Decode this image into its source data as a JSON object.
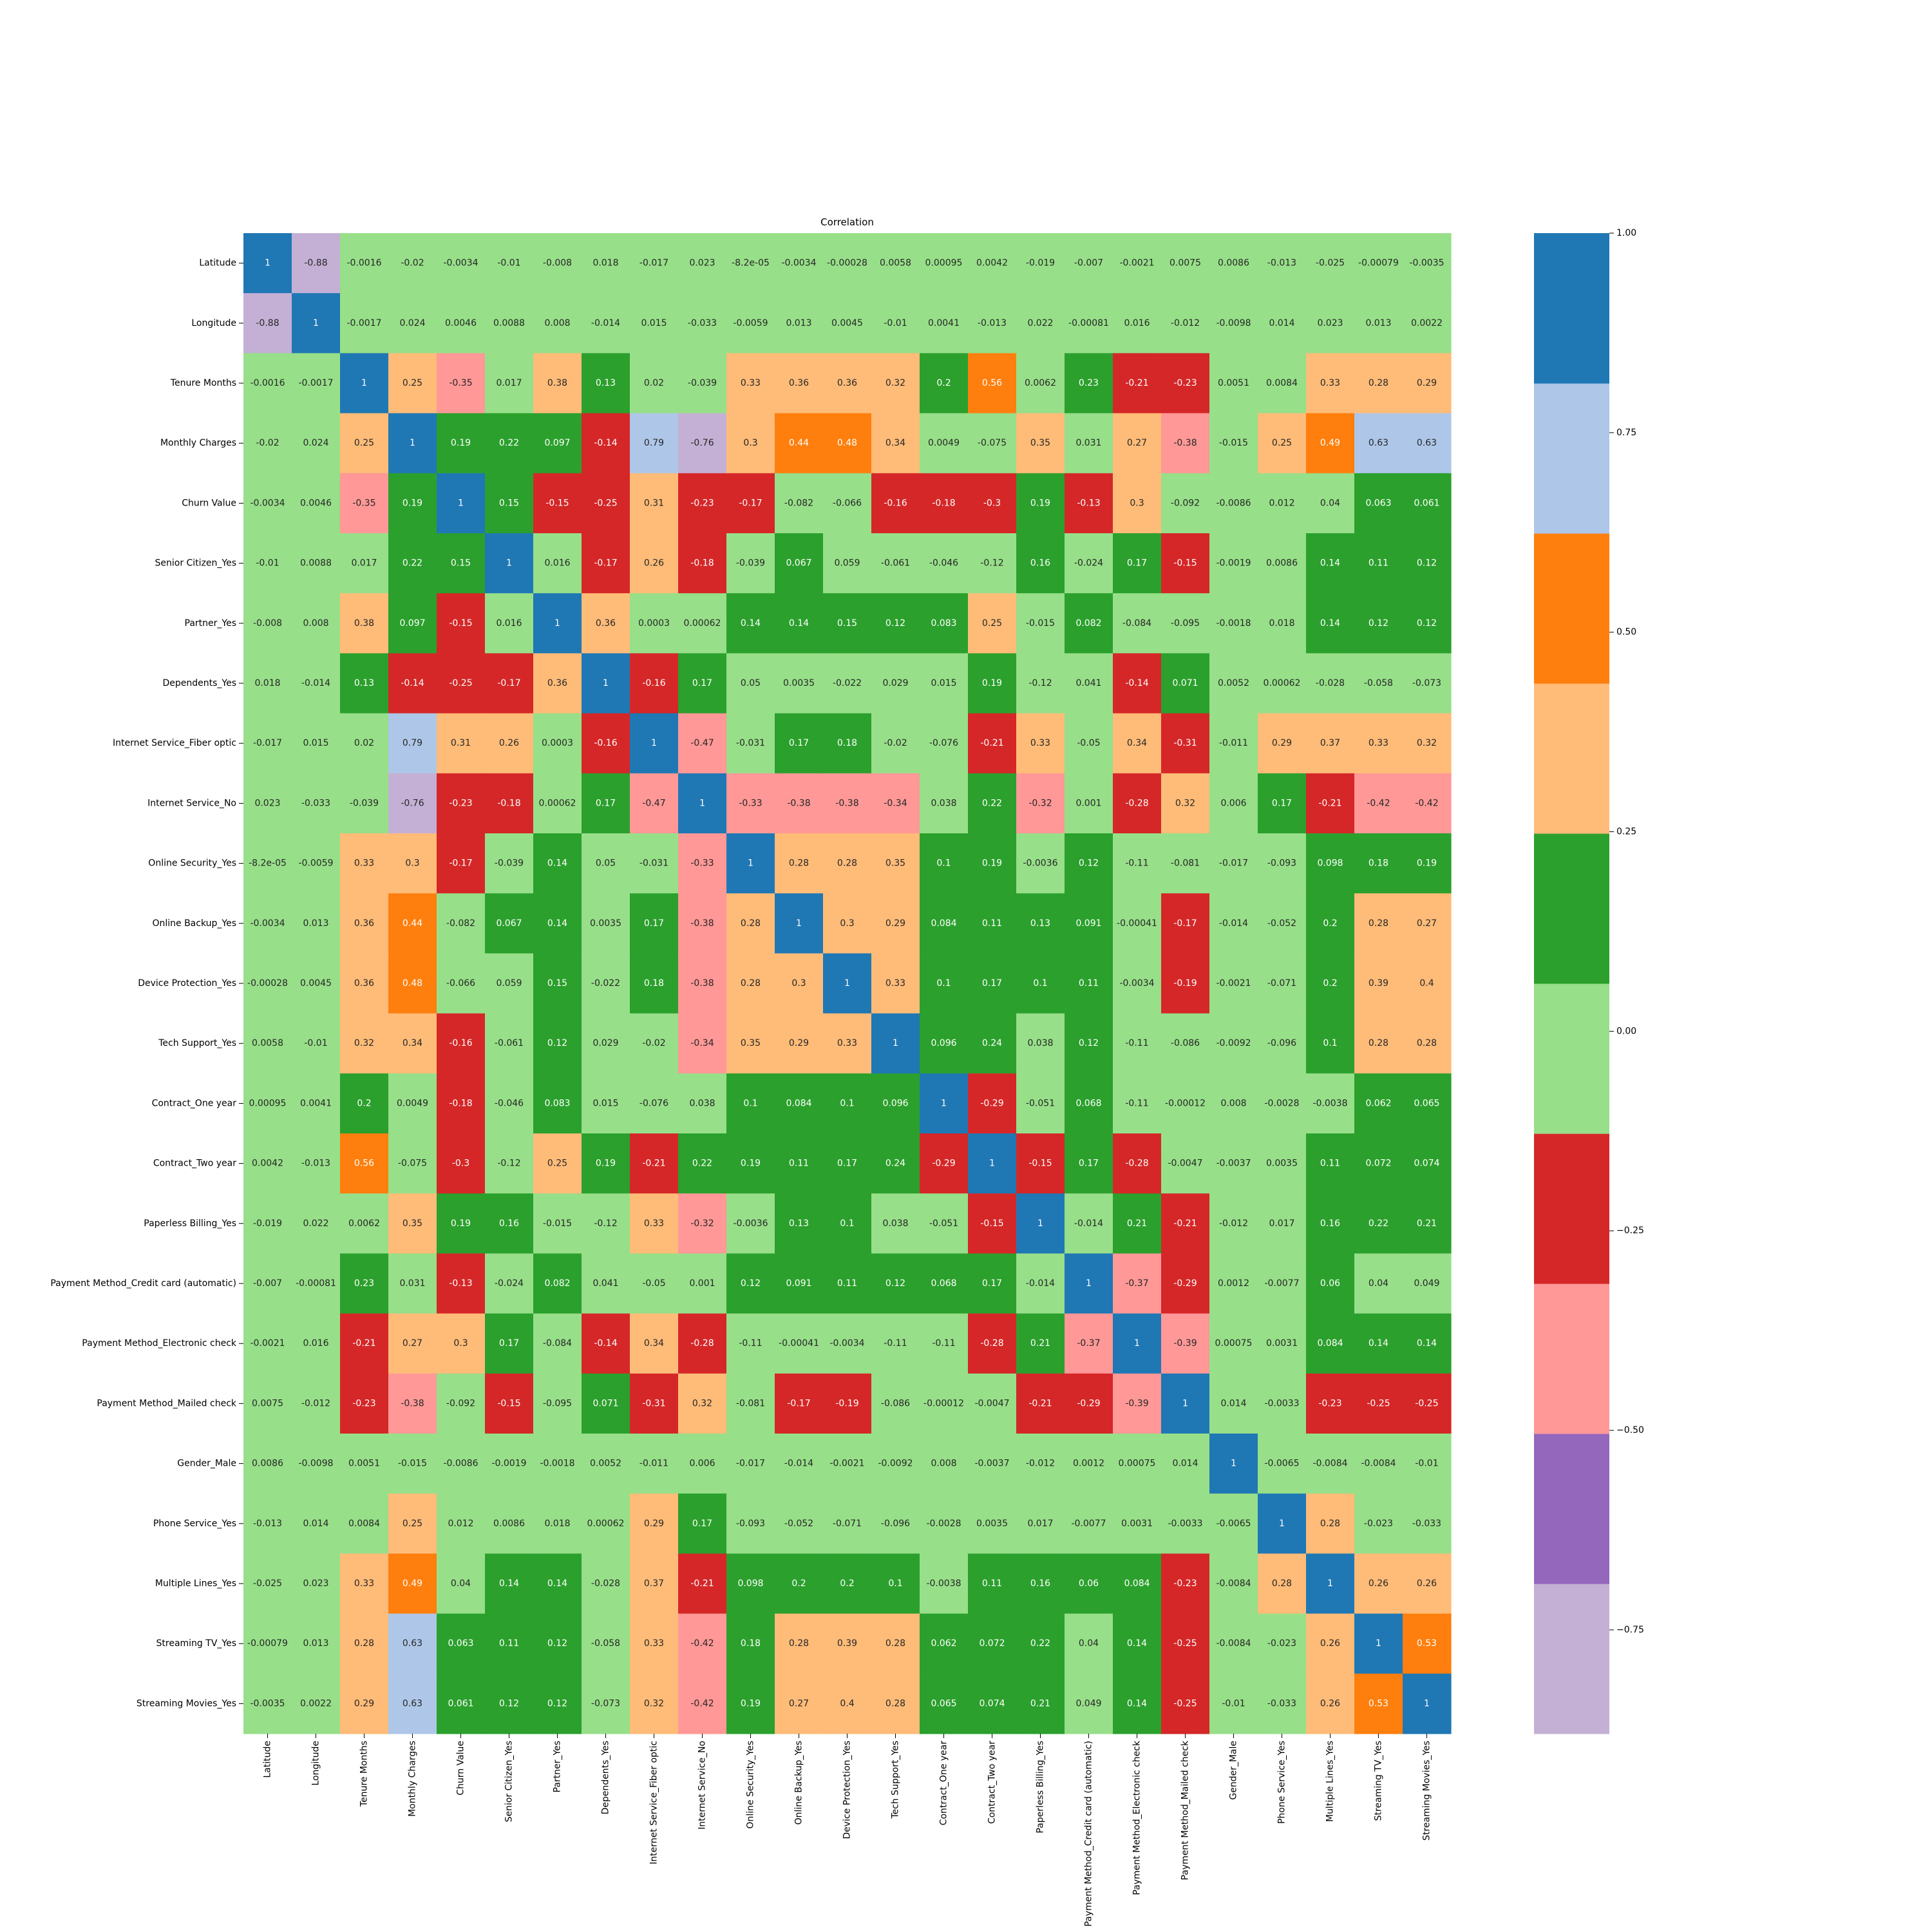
{
  "chart_data": {
    "type": "heatmap",
    "title": "Correlation",
    "labels": [
      "Latitude",
      "Longitude",
      "Tenure Months",
      "Monthly Charges",
      "Churn Value",
      "Senior Citizen_Yes",
      "Partner_Yes",
      "Dependents_Yes",
      "Internet Service_Fiber optic",
      "Internet Service_No",
      "Online Security_Yes",
      "Online Backup_Yes",
      "Device Protection_Yes",
      "Tech Support_Yes",
      "Contract_One year",
      "Contract_Two year",
      "Paperless Billing_Yes",
      "Payment Method_Credit card (automatic)",
      "Payment Method_Electronic check",
      "Payment Method_Mailed check",
      "Gender_Male",
      "Phone Service_Yes",
      "Multiple Lines_Yes",
      "Streaming TV_Yes",
      "Streaming Movies_Yes"
    ],
    "values": [
      [
        "1",
        "-0.88",
        "-0.0016",
        "-0.02",
        "-0.0034",
        "-0.01",
        "-0.008",
        "0.018",
        "-0.017",
        "0.023",
        "-8.2e-05",
        "-0.0034",
        "-0.00028",
        "0.0058",
        "0.00095",
        "0.0042",
        "-0.019",
        "-0.007",
        "-0.0021",
        "0.0075",
        "0.0086",
        "-0.013",
        "-0.025",
        "-0.00079",
        "-0.0035"
      ],
      [
        "-0.88",
        "1",
        "-0.0017",
        "0.024",
        "0.0046",
        "0.0088",
        "0.008",
        "-0.014",
        "0.015",
        "-0.033",
        "-0.0059",
        "0.013",
        "0.0045",
        "-0.01",
        "0.0041",
        "-0.013",
        "0.022",
        "-0.00081",
        "0.016",
        "-0.012",
        "-0.0098",
        "0.014",
        "0.023",
        "0.013",
        "0.0022"
      ],
      [
        "-0.0016",
        "-0.0017",
        "1",
        "0.25",
        "-0.35",
        "0.017",
        "0.38",
        "0.13",
        "0.02",
        "-0.039",
        "0.33",
        "0.36",
        "0.36",
        "0.32",
        "0.2",
        "0.56",
        "0.0062",
        "0.23",
        "-0.21",
        "-0.23",
        "0.0051",
        "0.0084",
        "0.33",
        "0.28",
        "0.29"
      ],
      [
        "-0.02",
        "0.024",
        "0.25",
        "1",
        "0.19",
        "0.22",
        "0.097",
        "-0.14",
        "0.79",
        "-0.76",
        "0.3",
        "0.44",
        "0.48",
        "0.34",
        "0.0049",
        "-0.075",
        "0.35",
        "0.031",
        "0.27",
        "-0.38",
        "-0.015",
        "0.25",
        "0.49",
        "0.63",
        "0.63"
      ],
      [
        "-0.0034",
        "0.0046",
        "-0.35",
        "0.19",
        "1",
        "0.15",
        "-0.15",
        "-0.25",
        "0.31",
        "-0.23",
        "-0.17",
        "-0.082",
        "-0.066",
        "-0.16",
        "-0.18",
        "-0.3",
        "0.19",
        "-0.13",
        "0.3",
        "-0.092",
        "-0.0086",
        "0.012",
        "0.04",
        "0.063",
        "0.061"
      ],
      [
        "-0.01",
        "0.0088",
        "0.017",
        "0.22",
        "0.15",
        "1",
        "0.016",
        "-0.17",
        "0.26",
        "-0.18",
        "-0.039",
        "0.067",
        "0.059",
        "-0.061",
        "-0.046",
        "-0.12",
        "0.16",
        "-0.024",
        "0.17",
        "-0.15",
        "-0.0019",
        "0.0086",
        "0.14",
        "0.11",
        "0.12"
      ],
      [
        "-0.008",
        "0.008",
        "0.38",
        "0.097",
        "-0.15",
        "0.016",
        "1",
        "0.36",
        "0.0003",
        "0.00062",
        "0.14",
        "0.14",
        "0.15",
        "0.12",
        "0.083",
        "0.25",
        "-0.015",
        "0.082",
        "-0.084",
        "-0.095",
        "-0.0018",
        "0.018",
        "0.14",
        "0.12",
        "0.12"
      ],
      [
        "0.018",
        "-0.014",
        "0.13",
        "-0.14",
        "-0.25",
        "-0.17",
        "0.36",
        "1",
        "-0.16",
        "0.17",
        "0.05",
        "0.0035",
        "-0.022",
        "0.029",
        "0.015",
        "0.19",
        "-0.12",
        "0.041",
        "-0.14",
        "0.071",
        "0.0052",
        "0.00062",
        "-0.028",
        "-0.058",
        "-0.073"
      ],
      [
        "-0.017",
        "0.015",
        "0.02",
        "0.79",
        "0.31",
        "0.26",
        "0.0003",
        "-0.16",
        "1",
        "-0.47",
        "-0.031",
        "0.17",
        "0.18",
        "-0.02",
        "-0.076",
        "-0.21",
        "0.33",
        "-0.05",
        "0.34",
        "-0.31",
        "-0.011",
        "0.29",
        "0.37",
        "0.33",
        "0.32"
      ],
      [
        "0.023",
        "-0.033",
        "-0.039",
        "-0.76",
        "-0.23",
        "-0.18",
        "0.00062",
        "0.17",
        "-0.47",
        "1",
        "-0.33",
        "-0.38",
        "-0.38",
        "-0.34",
        "0.038",
        "0.22",
        "-0.32",
        "0.001",
        "-0.28",
        "0.32",
        "0.006",
        "0.17",
        "-0.21",
        "-0.42",
        "-0.42"
      ],
      [
        "-8.2e-05",
        "-0.0059",
        "0.33",
        "0.3",
        "-0.17",
        "-0.039",
        "0.14",
        "0.05",
        "-0.031",
        "-0.33",
        "1",
        "0.28",
        "0.28",
        "0.35",
        "0.1",
        "0.19",
        "-0.0036",
        "0.12",
        "-0.11",
        "-0.081",
        "-0.017",
        "-0.093",
        "0.098",
        "0.18",
        "0.19"
      ],
      [
        "-0.0034",
        "0.013",
        "0.36",
        "0.44",
        "-0.082",
        "0.067",
        "0.14",
        "0.0035",
        "0.17",
        "-0.38",
        "0.28",
        "1",
        "0.3",
        "0.29",
        "0.084",
        "0.11",
        "0.13",
        "0.091",
        "-0.00041",
        "-0.17",
        "-0.014",
        "-0.052",
        "0.2",
        "0.28",
        "0.27"
      ],
      [
        "-0.00028",
        "0.0045",
        "0.36",
        "0.48",
        "-0.066",
        "0.059",
        "0.15",
        "-0.022",
        "0.18",
        "-0.38",
        "0.28",
        "0.3",
        "1",
        "0.33",
        "0.1",
        "0.17",
        "0.1",
        "0.11",
        "-0.0034",
        "-0.19",
        "-0.0021",
        "-0.071",
        "0.2",
        "0.39",
        "0.4"
      ],
      [
        "0.0058",
        "-0.01",
        "0.32",
        "0.34",
        "-0.16",
        "-0.061",
        "0.12",
        "0.029",
        "-0.02",
        "-0.34",
        "0.35",
        "0.29",
        "0.33",
        "1",
        "0.096",
        "0.24",
        "0.038",
        "0.12",
        "-0.11",
        "-0.086",
        "-0.0092",
        "-0.096",
        "0.1",
        "0.28",
        "0.28"
      ],
      [
        "0.00095",
        "0.0041",
        "0.2",
        "0.0049",
        "-0.18",
        "-0.046",
        "0.083",
        "0.015",
        "-0.076",
        "0.038",
        "0.1",
        "0.084",
        "0.1",
        "0.096",
        "1",
        "-0.29",
        "-0.051",
        "0.068",
        "-0.11",
        "-0.00012",
        "0.008",
        "-0.0028",
        "-0.0038",
        "0.062",
        "0.065"
      ],
      [
        "0.0042",
        "-0.013",
        "0.56",
        "-0.075",
        "-0.3",
        "-0.12",
        "0.25",
        "0.19",
        "-0.21",
        "0.22",
        "0.19",
        "0.11",
        "0.17",
        "0.24",
        "-0.29",
        "1",
        "-0.15",
        "0.17",
        "-0.28",
        "-0.0047",
        "-0.0037",
        "0.0035",
        "0.11",
        "0.072",
        "0.074"
      ],
      [
        "-0.019",
        "0.022",
        "0.0062",
        "0.35",
        "0.19",
        "0.16",
        "-0.015",
        "-0.12",
        "0.33",
        "-0.32",
        "-0.0036",
        "0.13",
        "0.1",
        "0.038",
        "-0.051",
        "-0.15",
        "1",
        "-0.014",
        "0.21",
        "-0.21",
        "-0.012",
        "0.017",
        "0.16",
        "0.22",
        "0.21"
      ],
      [
        "-0.007",
        "-0.00081",
        "0.23",
        "0.031",
        "-0.13",
        "-0.024",
        "0.082",
        "0.041",
        "-0.05",
        "0.001",
        "0.12",
        "0.091",
        "0.11",
        "0.12",
        "0.068",
        "0.17",
        "-0.014",
        "1",
        "-0.37",
        "-0.29",
        "0.0012",
        "-0.0077",
        "0.06",
        "0.04",
        "0.049"
      ],
      [
        "-0.0021",
        "0.016",
        "-0.21",
        "0.27",
        "0.3",
        "0.17",
        "-0.084",
        "-0.14",
        "0.34",
        "-0.28",
        "-0.11",
        "-0.00041",
        "-0.0034",
        "-0.11",
        "-0.11",
        "-0.28",
        "0.21",
        "-0.37",
        "1",
        "-0.39",
        "0.00075",
        "0.0031",
        "0.084",
        "0.14",
        "0.14"
      ],
      [
        "0.0075",
        "-0.012",
        "-0.23",
        "-0.38",
        "-0.092",
        "-0.15",
        "-0.095",
        "0.071",
        "-0.31",
        "0.32",
        "-0.081",
        "-0.17",
        "-0.19",
        "-0.086",
        "-0.00012",
        "-0.0047",
        "-0.21",
        "-0.29",
        "-0.39",
        "1",
        "0.014",
        "-0.0033",
        "-0.23",
        "-0.25",
        "-0.25"
      ],
      [
        "0.0086",
        "-0.0098",
        "0.0051",
        "-0.015",
        "-0.0086",
        "-0.0019",
        "-0.0018",
        "0.0052",
        "-0.011",
        "0.006",
        "-0.017",
        "-0.014",
        "-0.0021",
        "-0.0092",
        "0.008",
        "-0.0037",
        "-0.012",
        "0.0012",
        "0.00075",
        "0.014",
        "1",
        "-0.0065",
        "-0.0084",
        "-0.0084",
        "-0.01"
      ],
      [
        "-0.013",
        "0.014",
        "0.0084",
        "0.25",
        "0.012",
        "0.0086",
        "0.018",
        "0.00062",
        "0.29",
        "0.17",
        "-0.093",
        "-0.052",
        "-0.071",
        "-0.096",
        "-0.0028",
        "0.0035",
        "0.017",
        "-0.0077",
        "0.0031",
        "-0.0033",
        "-0.0065",
        "1",
        "0.28",
        "-0.023",
        "-0.033"
      ],
      [
        "-0.025",
        "0.023",
        "0.33",
        "0.49",
        "0.04",
        "0.14",
        "0.14",
        "-0.028",
        "0.37",
        "-0.21",
        "0.098",
        "0.2",
        "0.2",
        "0.1",
        "-0.0038",
        "0.11",
        "0.16",
        "0.06",
        "0.084",
        "-0.23",
        "-0.0084",
        "0.28",
        "1",
        "0.26",
        "0.26"
      ],
      [
        "-0.00079",
        "0.013",
        "0.28",
        "0.63",
        "0.063",
        "0.11",
        "0.12",
        "-0.058",
        "0.33",
        "-0.42",
        "0.18",
        "0.28",
        "0.39",
        "0.28",
        "0.062",
        "0.072",
        "0.22",
        "0.04",
        "0.14",
        "-0.25",
        "-0.0084",
        "-0.023",
        "0.26",
        "1",
        "0.53"
      ],
      [
        "-0.0035",
        "0.0022",
        "0.29",
        "0.63",
        "0.061",
        "0.12",
        "0.12",
        "-0.073",
        "0.32",
        "-0.42",
        "0.19",
        "0.27",
        "0.4",
        "0.28",
        "0.065",
        "0.074",
        "0.21",
        "0.049",
        "0.14",
        "-0.25",
        "-0.01",
        "-0.033",
        "0.26",
        "0.53",
        "1"
      ]
    ],
    "colormap": {
      "name": "tab20",
      "vmin": -0.88,
      "vmax": 1.0,
      "colors": [
        "#c5b0d5",
        "#9467bd",
        "#ff9896",
        "#d62728",
        "#98df8a",
        "#2ca02c",
        "#ffbb78",
        "#ff7f0e",
        "#aec7e8",
        "#1f77b4"
      ]
    },
    "colorbar": {
      "ticks": [
        1.0,
        0.75,
        0.5,
        0.25,
        0.0,
        -0.25,
        -0.5,
        -0.75
      ],
      "tick_labels": [
        "1.00",
        "0.75",
        "0.50",
        "0.25",
        "0.00",
        "−0.25",
        "−0.50",
        "−0.75"
      ]
    }
  }
}
